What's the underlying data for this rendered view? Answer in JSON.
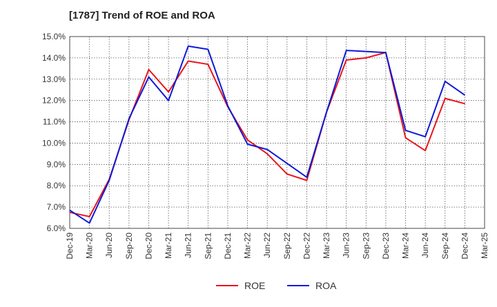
{
  "chart_data": {
    "type": "line",
    "title": "[1787]  Trend of ROE and ROA",
    "xlabel": "",
    "ylabel": "",
    "ylim": [
      6.0,
      15.0
    ],
    "yticks": [
      "6.0%",
      "7.0%",
      "8.0%",
      "9.0%",
      "10.0%",
      "11.0%",
      "12.0%",
      "13.0%",
      "14.0%",
      "15.0%"
    ],
    "categories": [
      "Dec-19",
      "Mar-20",
      "Jun-20",
      "Sep-20",
      "Dec-20",
      "Mar-21",
      "Jun-21",
      "Sep-21",
      "Dec-21",
      "Mar-22",
      "Jun-22",
      "Sep-22",
      "Dec-22",
      "Mar-23",
      "Jun-23",
      "Sep-23",
      "Dec-23",
      "Mar-24",
      "Jun-24",
      "Sep-24",
      "Dec-24",
      "Mar-25"
    ],
    "grid": true,
    "legend_position": "bottom",
    "series": [
      {
        "name": "ROE",
        "color": "#e8151b",
        "values": [
          6.75,
          6.55,
          8.3,
          11.1,
          13.45,
          12.4,
          13.85,
          13.7,
          11.7,
          10.15,
          9.5,
          8.55,
          8.25,
          11.45,
          13.9,
          14.0,
          14.25,
          10.25,
          9.65,
          12.1,
          11.85,
          null
        ]
      },
      {
        "name": "ROA",
        "color": "#0f19d6",
        "values": [
          6.85,
          6.25,
          8.25,
          11.15,
          13.1,
          12.0,
          14.55,
          14.4,
          11.75,
          9.95,
          9.7,
          9.05,
          8.4,
          11.45,
          14.35,
          14.3,
          14.25,
          10.6,
          10.3,
          12.9,
          12.25,
          null
        ]
      }
    ]
  }
}
